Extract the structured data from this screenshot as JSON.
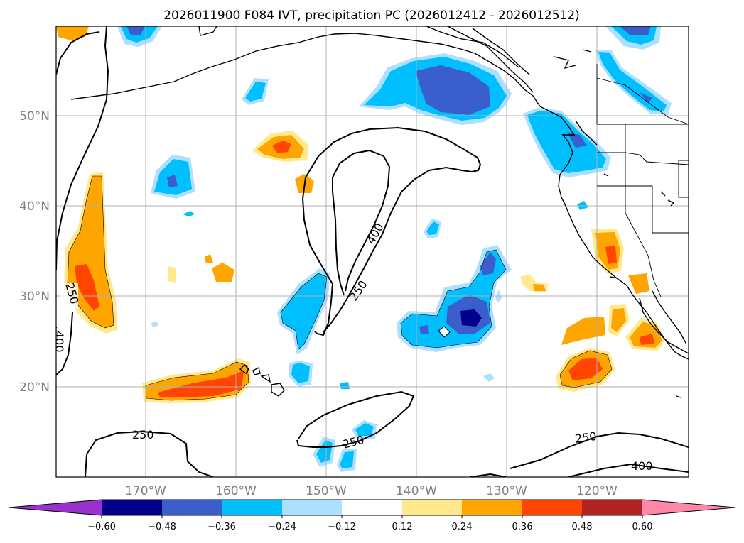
{
  "title": "2026011900 F084 IVT, precipitation PC (2026012412 - 2026012512)",
  "lat_labels": [
    "50°N",
    "40°N",
    "30°N",
    "20°N"
  ],
  "lon_labels": [
    "170°W",
    "160°W",
    "150°W",
    "140°W",
    "130°W",
    "120°W"
  ],
  "contours": {
    "levels": [
      "250",
      "400"
    ],
    "labels": [
      "250",
      "400",
      "250",
      "400",
      "250",
      "250",
      "250",
      "400"
    ]
  },
  "colorbar": {
    "ticks": [
      "−0.60",
      "−0.48",
      "−0.36",
      "−0.24",
      "−0.12",
      "0.12",
      "0.24",
      "0.36",
      "0.48",
      "0.60"
    ],
    "colors": [
      "#9932CC",
      "#00008B",
      "#3A5FCD",
      "#00BFFF",
      "#ADDFFF",
      "#FFFFFF",
      "#FFE98C",
      "#FFA500",
      "#FF4500",
      "#B22222",
      "#FF88AA"
    ]
  },
  "style": {
    "grid_color": "#b0b0b0",
    "coast_color": "#000000"
  }
}
